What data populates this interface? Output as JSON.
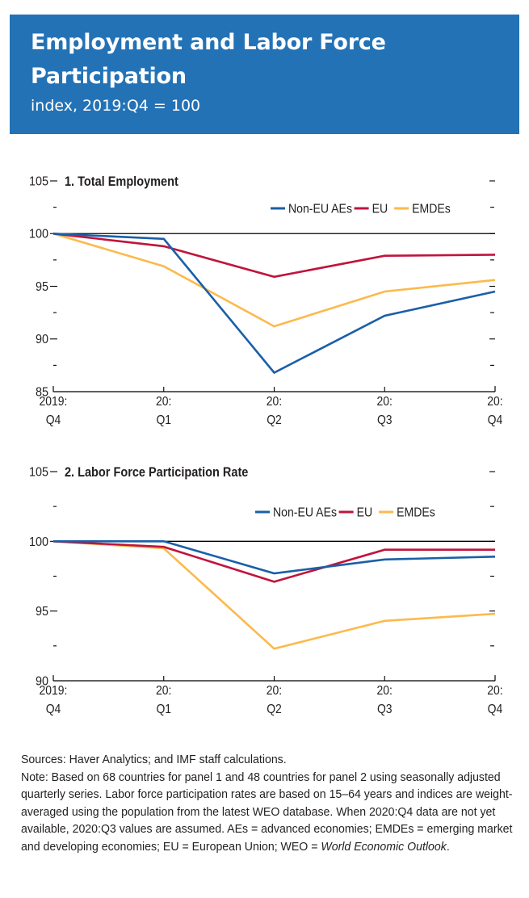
{
  "header": {
    "title": "Employment and Labor Force Participation",
    "subtitle": "index, 2019:Q4  = 100",
    "background_color": "#2372b6"
  },
  "colors": {
    "Non-EU AEs": "#1a5fa8",
    "EU": "#c0143c",
    "EMDEs": "#fdb94d"
  },
  "chart_data": [
    {
      "type": "line",
      "title": "1. Total Employment",
      "x": [
        "2019:Q4",
        "20:Q1",
        "20:Q2",
        "20:Q3",
        "20:Q4"
      ],
      "x_tick_labels": [
        [
          "2019:",
          "Q4"
        ],
        [
          "20:",
          "Q1"
        ],
        [
          "20:",
          "Q2"
        ],
        [
          "20:",
          "Q3"
        ],
        [
          "20:",
          "Q4"
        ]
      ],
      "ylim": [
        85,
        105
      ],
      "y_major_ticks": [
        85,
        90,
        95,
        100,
        105
      ],
      "y_minor_ticks": [
        87.5,
        92.5,
        97.5,
        102.5
      ],
      "reference_line": 100,
      "legend": [
        "Non-EU AEs",
        "EU",
        "EMDEs"
      ],
      "legend_position": "top-right",
      "series": [
        {
          "name": "Non-EU AEs",
          "values": [
            100.0,
            99.5,
            86.8,
            92.2,
            94.5
          ]
        },
        {
          "name": "EU",
          "values": [
            100.0,
            98.8,
            95.9,
            97.9,
            98.0
          ]
        },
        {
          "name": "EMDEs",
          "values": [
            100.0,
            96.9,
            91.2,
            94.5,
            95.6
          ]
        }
      ],
      "xlabel": "",
      "ylabel": ""
    },
    {
      "type": "line",
      "title": "2. Labor Force Participation Rate",
      "x": [
        "2019:Q4",
        "20:Q1",
        "20:Q2",
        "20:Q3",
        "20:Q4"
      ],
      "x_tick_labels": [
        [
          "2019:",
          "Q4"
        ],
        [
          "20:",
          "Q1"
        ],
        [
          "20:",
          "Q2"
        ],
        [
          "20:",
          "Q3"
        ],
        [
          "20:",
          "Q4"
        ]
      ],
      "ylim": [
        90,
        105
      ],
      "y_major_ticks": [
        90,
        95,
        100,
        105
      ],
      "y_minor_ticks": [
        92.5,
        97.5,
        102.5
      ],
      "reference_line": 100,
      "legend": [
        "Non-EU AEs",
        "EU",
        "EMDEs"
      ],
      "legend_position": "top-right",
      "series": [
        {
          "name": "Non-EU AEs",
          "values": [
            100.0,
            100.0,
            97.7,
            98.7,
            98.9
          ]
        },
        {
          "name": "EU",
          "values": [
            100.0,
            99.6,
            97.1,
            99.4,
            99.4
          ]
        },
        {
          "name": "EMDEs",
          "values": [
            100.0,
            99.5,
            92.3,
            94.3,
            94.8
          ]
        }
      ],
      "xlabel": "",
      "ylabel": ""
    }
  ],
  "footnote": {
    "sources": "Sources: Haver Analytics; and IMF staff calculations.",
    "note_main": "Note: Based on 68 countries for panel 1 and 48 countries for panel 2 using seasonally adjusted quarterly series. Labor force participation rates are based on 15–64 years and indices are weight-averaged using the population from the latest WEO database. When 2020:Q4 data are not yet available, 2020:Q3 values are assumed. AEs = advanced economies; EMDEs = emerging market and developing economies; EU = European Union; WEO = ",
    "note_italic": "World Economic Outlook",
    "note_end": "."
  }
}
